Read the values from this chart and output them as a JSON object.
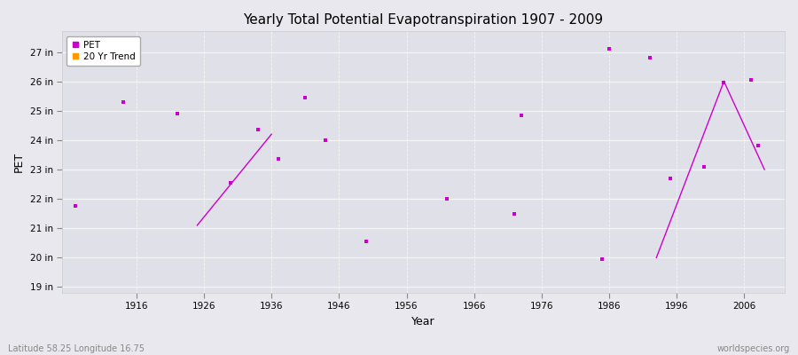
{
  "title": "Yearly Total Potential Evapotranspiration 1907 - 2009",
  "xlabel": "Year",
  "ylabel": "PET",
  "subtitle_left": "Latitude 58.25 Longitude 16.75",
  "subtitle_right": "worldspecies.org",
  "ylim": [
    18.8,
    27.7
  ],
  "yticks": [
    19,
    20,
    21,
    22,
    23,
    24,
    25,
    26,
    27
  ],
  "ytick_labels": [
    "19 in",
    "20 in",
    "21 in",
    "22 in",
    "23 in",
    "24 in",
    "25 in",
    "26 in",
    "27 in"
  ],
  "xlim": [
    1905,
    2012
  ],
  "xticks": [
    1916,
    1926,
    1936,
    1946,
    1956,
    1966,
    1976,
    1986,
    1996,
    2006
  ],
  "fig_bg_color": "#e8e8ee",
  "plot_bg_color": "#e0e0e8",
  "grid_color": "#f5f5f5",
  "pet_color": "#cc00cc",
  "trend_color": "#ff9900",
  "pet_data": [
    [
      1907,
      21.75
    ],
    [
      1914,
      25.3
    ],
    [
      1922,
      24.9
    ],
    [
      1930,
      22.55
    ],
    [
      1934,
      24.35
    ],
    [
      1937,
      23.35
    ],
    [
      1941,
      25.45
    ],
    [
      1944,
      24.0
    ],
    [
      1950,
      20.55
    ],
    [
      1962,
      22.0
    ],
    [
      1972,
      21.5
    ],
    [
      1973,
      24.85
    ],
    [
      1985,
      19.95
    ],
    [
      1986,
      27.1
    ],
    [
      1992,
      26.8
    ],
    [
      1995,
      22.7
    ],
    [
      2000,
      23.1
    ],
    [
      2003,
      25.95
    ],
    [
      2007,
      26.05
    ],
    [
      2008,
      23.8
    ]
  ],
  "trend_segments": [
    [
      [
        1925,
        21.1
      ],
      [
        1936,
        24.2
      ]
    ],
    [
      [
        1993,
        20.0
      ],
      [
        2003,
        26.0
      ]
    ],
    [
      [
        2003,
        26.0
      ],
      [
        2009,
        23.0
      ]
    ]
  ],
  "legend_pet_label": "PET",
  "legend_trend_label": "20 Yr Trend"
}
